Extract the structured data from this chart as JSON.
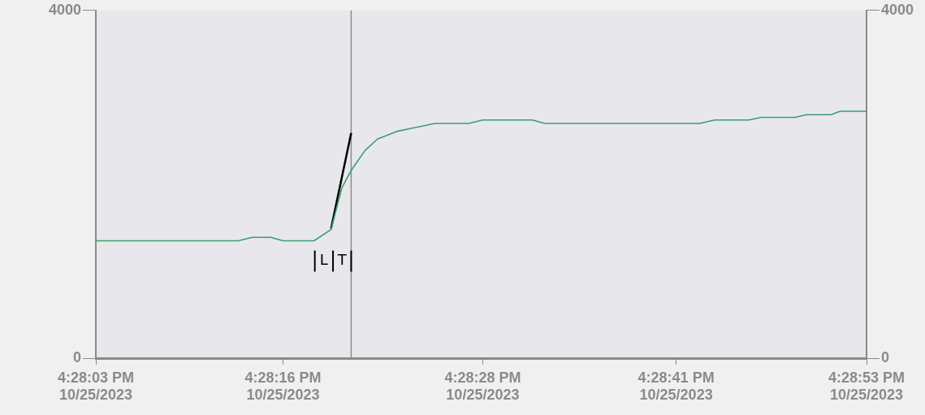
{
  "chart_data": {
    "type": "line",
    "series": [
      {
        "color": "#3a9e6e",
        "x": [
          "2023-10-25T16:28:03.9",
          "2023-10-25T16:28:13.1",
          "2023-10-25T16:28:14.0",
          "2023-10-25T16:28:15.2",
          "2023-10-25T16:28:16.0",
          "2023-10-25T16:28:18.0",
          "2023-10-25T16:28:19.1",
          "2023-10-25T16:28:19.8",
          "2023-10-25T16:28:20.4",
          "2023-10-25T16:28:21.3",
          "2023-10-25T16:28:22.1",
          "2023-10-25T16:28:23.4",
          "2023-10-25T16:28:25.0",
          "2023-10-25T16:28:25.8",
          "2023-10-25T16:28:28.0",
          "2023-10-25T16:28:28.9",
          "2023-10-25T16:28:32.1",
          "2023-10-25T16:28:32.9",
          "2023-10-25T16:28:42.9",
          "2023-10-25T16:28:43.9",
          "2023-10-25T16:28:46.1",
          "2023-10-25T16:28:46.9",
          "2023-10-25T16:28:49.1",
          "2023-10-25T16:28:49.8",
          "2023-10-25T16:28:51.4",
          "2023-10-25T16:28:52.0",
          "2023-10-25T16:28:53.7"
        ],
        "values": [
          1350,
          1350,
          1390,
          1390,
          1350,
          1350,
          1480,
          1960,
          2160,
          2390,
          2520,
          2610,
          2670,
          2700,
          2700,
          2740,
          2740,
          2700,
          2700,
          2740,
          2740,
          2770,
          2770,
          2800,
          2800,
          2840,
          2840
        ]
      },
      {
        "type": "line",
        "color": "#000000",
        "x": [
          "2023-10-25T16:28:19.1",
          "2023-10-25T16:28:20.4"
        ],
        "values": [
          1490,
          2590
        ]
      }
    ],
    "xlim": [
      "2023-10-25T16:28:03.9",
      "2023-10-25T16:28:53.7"
    ],
    "xticks": [
      {
        "value": "2023-10-25T16:28:03.9",
        "label": "4:28:03 PM\n10/25/2023"
      },
      {
        "value": "2023-10-25T16:28:16.0",
        "label": "4:28:16 PM\n10/25/2023"
      },
      {
        "value": "2023-10-25T16:28:28.9",
        "label": "4:28:28 PM\n10/25/2023"
      },
      {
        "value": "2023-10-25T16:28:41.4",
        "label": "4:28:41 PM\n10/25/2023"
      },
      {
        "value": "2023-10-25T16:28:53.7",
        "label": "4:28:53 PM\n10/25/2023"
      }
    ],
    "ylim": [
      0,
      4000
    ],
    "yticks": [
      0,
      4000
    ],
    "y2lim": [
      0,
      4000
    ],
    "y2ticks": [
      0,
      4000
    ],
    "ref_lines": [
      {
        "axis": "x",
        "value": "2023-10-25T16:28:20.4",
        "color": "#8c8c8c"
      }
    ],
    "annotations": [
      "L",
      "T"
    ],
    "grid": false,
    "legend": false
  }
}
